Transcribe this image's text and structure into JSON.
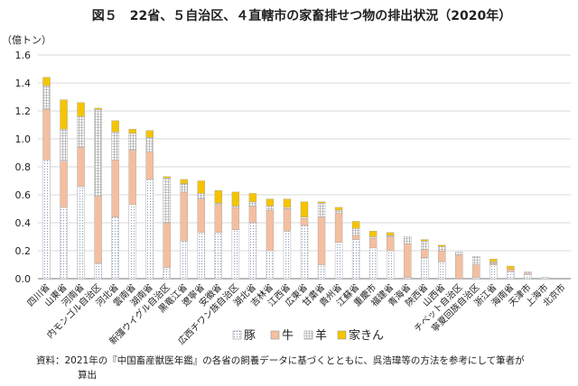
{
  "chart_data": {
    "type": "bar",
    "stacked": true,
    "title": "図５　22省、５自治区、４直轄市の家畜排せつ物の排出状況（2020年）",
    "unit_label": "（億トン）",
    "ylim": [
      0,
      1.6
    ],
    "yticks": [
      "0.0",
      "0.2",
      "0.4",
      "0.6",
      "0.8",
      "1.0",
      "1.2",
      "1.4",
      "1.6"
    ],
    "grid": true,
    "legend_position": "bottom",
    "categories": [
      "四川省",
      "山東省",
      "河南省",
      "内モンゴル自治区",
      "河北省",
      "雲南省",
      "湖南省",
      "新彊ウイグル自治区",
      "黒竜江省",
      "遼寧省",
      "安徽省",
      "広西チワン族自治区",
      "湖北省",
      "吉林省",
      "江西省",
      "広東省",
      "甘粛省",
      "貴州省",
      "江蘇省",
      "重慶市",
      "福建省",
      "青海省",
      "陝西省",
      "山西省",
      "チベット自治区",
      "寧夏回族自治区",
      "浙江省",
      "海南省",
      "天津市",
      "上海市",
      "北京市"
    ],
    "series": [
      {
        "name": "豚",
        "color": "#ffffff",
        "pattern": "dots",
        "values": [
          0.85,
          0.51,
          0.66,
          0.11,
          0.44,
          0.53,
          0.71,
          0.08,
          0.27,
          0.33,
          0.33,
          0.35,
          0.4,
          0.2,
          0.34,
          0.38,
          0.1,
          0.26,
          0.28,
          0.22,
          0.2,
          0.01,
          0.15,
          0.12,
          0.0,
          0.01,
          0.1,
          0.05,
          0.03,
          0.01,
          0.0
        ]
      },
      {
        "name": "牛",
        "color": "#f4bfa0",
        "values": [
          0.36,
          0.33,
          0.28,
          0.48,
          0.41,
          0.39,
          0.2,
          0.32,
          0.35,
          0.24,
          0.2,
          0.16,
          0.12,
          0.29,
          0.16,
          0.05,
          0.34,
          0.21,
          0.03,
          0.07,
          0.1,
          0.24,
          0.06,
          0.08,
          0.17,
          0.09,
          0.01,
          0.02,
          0.01,
          0.0,
          0.0
        ]
      },
      {
        "name": "羊",
        "color": "#ffffff",
        "pattern": "grid",
        "values": [
          0.17,
          0.23,
          0.22,
          0.62,
          0.2,
          0.12,
          0.1,
          0.32,
          0.06,
          0.04,
          0.01,
          0.01,
          0.03,
          0.03,
          0.01,
          0.01,
          0.1,
          0.02,
          0.05,
          0.01,
          0.01,
          0.05,
          0.06,
          0.03,
          0.02,
          0.06,
          0.01,
          0.0,
          0.01,
          0.0,
          0.0
        ]
      },
      {
        "name": "家きん",
        "color": "#f5c400",
        "values": [
          0.06,
          0.21,
          0.1,
          0.01,
          0.08,
          0.03,
          0.05,
          0.01,
          0.03,
          0.09,
          0.09,
          0.1,
          0.06,
          0.05,
          0.06,
          0.11,
          0.01,
          0.02,
          0.05,
          0.04,
          0.02,
          0.0,
          0.01,
          0.01,
          0.0,
          0.0,
          0.02,
          0.02,
          0.0,
          0.0,
          0.0
        ]
      }
    ]
  },
  "note_line1": "資料：2021年の『中国畜産獣医年鑑』の各省の飼養データに基づくとともに、呉浩瑋等の方法を参考にして筆者が",
  "note_line2": "算出"
}
